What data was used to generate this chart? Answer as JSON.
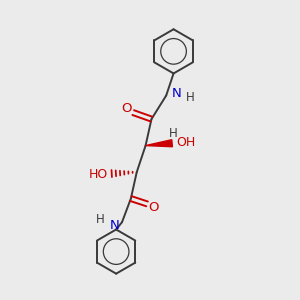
{
  "bg_color": "#ebebeb",
  "bond_color": "#3a3a3a",
  "atom_N_color": "#0000cc",
  "atom_O_color": "#cc0000",
  "atom_H_color": "#3a3a3a",
  "line_width": 1.4,
  "figsize": [
    3.0,
    3.0
  ],
  "dpi": 100,
  "xlim": [
    0,
    10
  ],
  "ylim": [
    0,
    10
  ]
}
